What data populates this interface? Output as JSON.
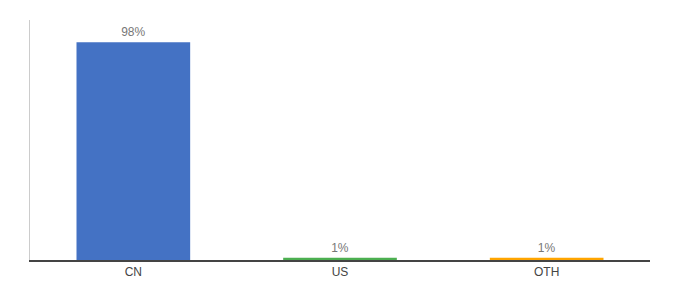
{
  "chart_data": {
    "type": "bar",
    "categories": [
      "CN",
      "US",
      "OTH"
    ],
    "values": [
      98,
      1,
      1
    ],
    "value_labels": [
      "98%",
      "1%",
      "1%"
    ],
    "colors": [
      "#4472c4",
      "#4caf50",
      "#ffa500"
    ],
    "data_labels": true,
    "ylim": [
      0,
      108
    ],
    "grid": false,
    "tick_labels": "x"
  }
}
